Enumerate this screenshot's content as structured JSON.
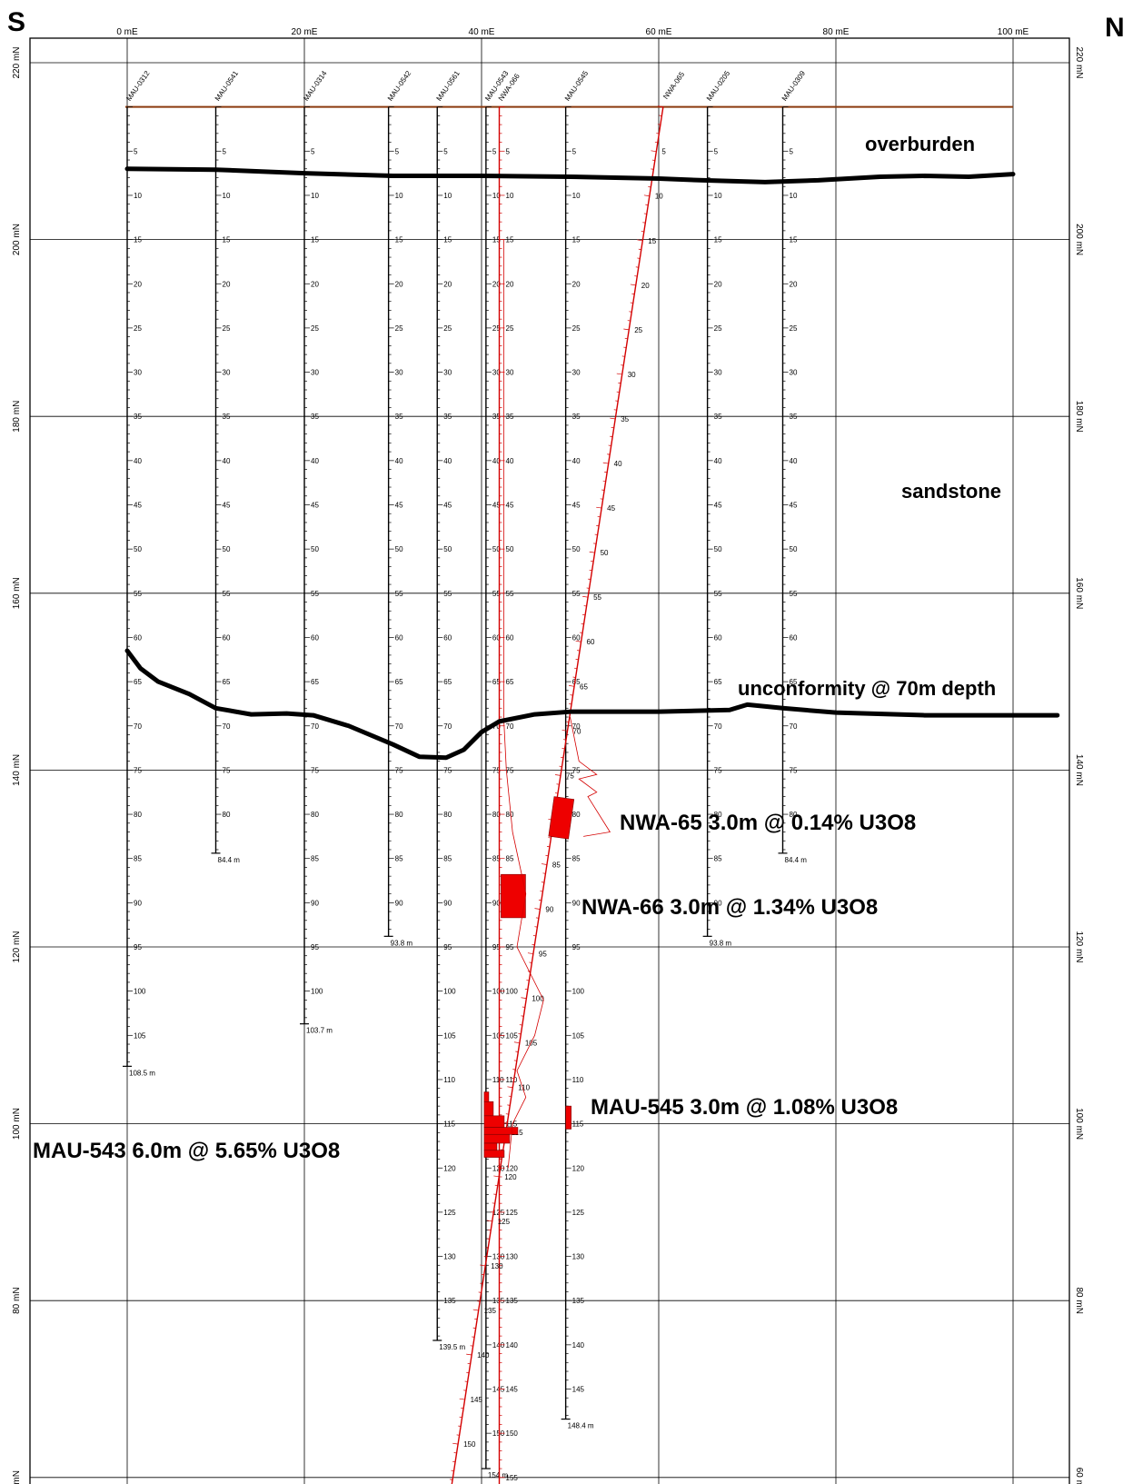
{
  "directions": {
    "south": "S",
    "north": "N"
  },
  "easting_labels": [
    {
      "value": 0,
      "label": "0 mE"
    },
    {
      "value": 20,
      "label": "20 mE"
    },
    {
      "value": 40,
      "label": "40 mE"
    },
    {
      "value": 60,
      "label": "60 mE"
    },
    {
      "value": 80,
      "label": "80 mE"
    },
    {
      "value": 100,
      "label": "100 mE"
    }
  ],
  "elevation_labels_left": [
    {
      "value": 220,
      "label": "220 mN"
    },
    {
      "value": 200,
      "label": "200 mN"
    },
    {
      "value": 180,
      "label": "180 mN"
    },
    {
      "value": 160,
      "label": "160 mN"
    },
    {
      "value": 140,
      "label": "140 mN"
    },
    {
      "value": 120,
      "label": "120 mN"
    },
    {
      "value": 100,
      "label": "100 mN"
    },
    {
      "value": 80,
      "label": "80 mN"
    },
    {
      "value": 60,
      "label": "mN"
    }
  ],
  "elevation_labels_right": [
    {
      "value": 220,
      "label": "220 mN"
    },
    {
      "value": 200,
      "label": "200 mN"
    },
    {
      "value": 180,
      "label": "180 mN"
    },
    {
      "value": 160,
      "label": "160 mN"
    },
    {
      "value": 140,
      "label": "140 mN"
    },
    {
      "value": 120,
      "label": "120 mN"
    },
    {
      "value": 100,
      "label": "100 mN"
    },
    {
      "value": 80,
      "label": "80 mN"
    },
    {
      "value": 60,
      "label": "60 m"
    }
  ],
  "units": {
    "overburden": "overburden",
    "sandstone": "sandstone",
    "unconformity": "unconformity @ 70m depth"
  },
  "ground_surface": {
    "elevation": 215,
    "color": "#8b3a0e"
  },
  "overburden_contact": [
    [
      0,
      208.0
    ],
    [
      10,
      207.9
    ],
    [
      20,
      207.5
    ],
    [
      30,
      207.2
    ],
    [
      40,
      207.2
    ],
    [
      50,
      207.1
    ],
    [
      60,
      206.9
    ],
    [
      65,
      206.7
    ],
    [
      72,
      206.5
    ],
    [
      78,
      206.7
    ],
    [
      85,
      207.1
    ],
    [
      90,
      207.2
    ],
    [
      95,
      207.1
    ],
    [
      100,
      207.4
    ]
  ],
  "unconformity_contact": [
    [
      0,
      153.5
    ],
    [
      1.5,
      151.5
    ],
    [
      3.5,
      150.0
    ],
    [
      7,
      148.6
    ],
    [
      10,
      147.0
    ],
    [
      14,
      146.3
    ],
    [
      18,
      146.4
    ],
    [
      21,
      146.2
    ],
    [
      25,
      145.0
    ],
    [
      30,
      142.9
    ],
    [
      33,
      141.5
    ],
    [
      36,
      141.4
    ],
    [
      38,
      142.3
    ],
    [
      40,
      144.3
    ],
    [
      42,
      145.5
    ],
    [
      46,
      146.3
    ],
    [
      50,
      146.6
    ],
    [
      60,
      146.6
    ],
    [
      68,
      146.8
    ],
    [
      70,
      147.4
    ],
    [
      74,
      147.0
    ],
    [
      80,
      146.5
    ],
    [
      90,
      146.2
    ],
    [
      100,
      146.2
    ],
    [
      105,
      146.2
    ]
  ],
  "holes": [
    {
      "name": "MAU-0312",
      "easting": 0,
      "depth": 108.5,
      "end_label": "108.5 m",
      "color": "#000000"
    },
    {
      "name": "MAU-0541",
      "easting": 10,
      "depth": 84.4,
      "end_label": "84.4 m",
      "color": "#000000"
    },
    {
      "name": "MAU-0314",
      "easting": 20,
      "depth": 103.7,
      "end_label": "103.7 m",
      "color": "#000000"
    },
    {
      "name": "MAU-0542",
      "easting": 29.5,
      "depth": 93.8,
      "end_label": "93.8 m",
      "color": "#000000"
    },
    {
      "name": "MAU-0561",
      "easting": 35,
      "depth": 139.5,
      "end_label": "139.5 m",
      "color": "#000000"
    },
    {
      "name": "MAU-0543",
      "easting": 40.5,
      "depth": 154,
      "end_label": "154 m",
      "color": "#000000"
    },
    {
      "name": "NWA-066",
      "easting": 42,
      "depth": 160,
      "end_label": "",
      "color": "#d40000"
    },
    {
      "name": "MAU-0545",
      "easting": 49.5,
      "depth": 148.4,
      "end_label": "148.4 m",
      "color": "#000000"
    },
    {
      "name": "MAU-0205",
      "easting": 65.5,
      "depth": 93.8,
      "end_label": "93.8 m",
      "color": "#000000"
    },
    {
      "name": "MAU-0309",
      "easting": 74,
      "depth": 84.4,
      "end_label": "84.4 m",
      "color": "#000000"
    }
  ],
  "inclined_hole": {
    "name": "NWA-065",
    "collar_easting": 60.5,
    "bottom_easting": 36,
    "bottom_elevation": 55,
    "color": "#d40000"
  },
  "intercepts": [
    {
      "label": "NWA-65  3.0m @ 0.14% U3O8",
      "hole": "NWA-065",
      "grade_pct": 0.14,
      "length_m": 3.0,
      "color": "#ee0000"
    },
    {
      "label": "NWA-66  3.0m @ 1.34% U3O8",
      "hole": "NWA-066",
      "grade_pct": 1.34,
      "length_m": 3.0,
      "color": "#ee0000"
    },
    {
      "label": "MAU-545  3.0m @ 1.08% U3O8",
      "hole": "MAU-0545",
      "grade_pct": 1.08,
      "length_m": 3.0,
      "color": "#ee0000"
    },
    {
      "label": "MAU-543  6.0m @ 5.65% U3O8",
      "hole": "MAU-0543",
      "grade_pct": 5.65,
      "length_m": 6.0,
      "color": "#ee0000"
    }
  ],
  "colors": {
    "grid": "#000000",
    "contact": "#000000",
    "assay": "#ee0000",
    "trace_red": "#d40000"
  }
}
